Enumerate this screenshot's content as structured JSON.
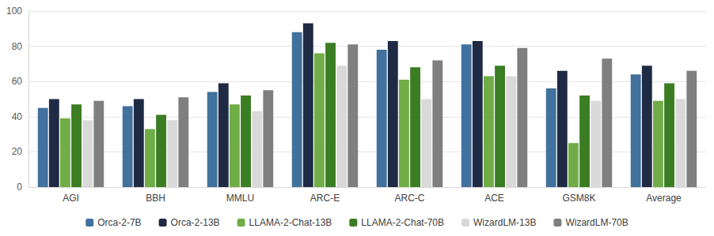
{
  "chart_data": {
    "type": "bar",
    "categories": [
      "AGI",
      "BBH",
      "MMLU",
      "ARC-E",
      "ARC-C",
      "ACE",
      "GSM8K",
      "Average"
    ],
    "series": [
      {
        "name": "Orca-2-7B",
        "color": "#41719c",
        "values": [
          45,
          46,
          54,
          88,
          78,
          81,
          56,
          64
        ]
      },
      {
        "name": "Orca-2-13B",
        "color": "#1f2a44",
        "values": [
          50,
          50,
          59,
          93,
          83,
          83,
          66,
          69
        ]
      },
      {
        "name": "LLAMA-2-Chat-13B",
        "color": "#70ad47",
        "values": [
          39,
          33,
          47,
          76,
          61,
          63,
          25,
          49
        ]
      },
      {
        "name": "LLAMA-2-Chat-70B",
        "color": "#3a7d22",
        "values": [
          47,
          41,
          52,
          82,
          68,
          69,
          52,
          59
        ]
      },
      {
        "name": "WizardLM-13B",
        "color": "#d9d9d9",
        "values": [
          38,
          38,
          43,
          69,
          50,
          63,
          49,
          50
        ]
      },
      {
        "name": "WizardLM-70B",
        "color": "#7f7f7f",
        "values": [
          49,
          51,
          55,
          81,
          72,
          79,
          73,
          66
        ]
      }
    ],
    "ylim": [
      0,
      100
    ],
    "yticks": [
      0,
      20,
      40,
      60,
      80,
      100
    ],
    "grid": true,
    "legend": "bottom"
  }
}
